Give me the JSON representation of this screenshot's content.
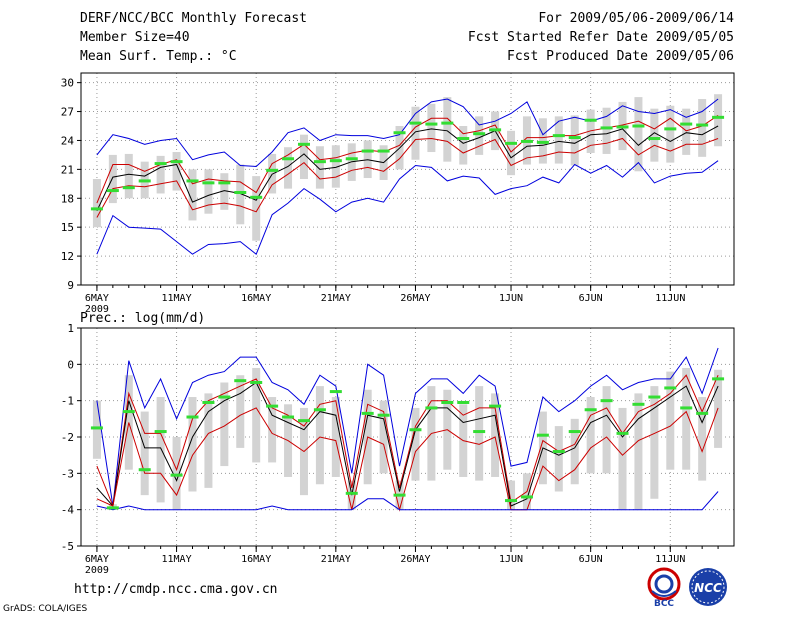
{
  "header": {
    "left": [
      "DERF/NCC/BCC Monthly Forecast",
      "Member Size=40",
      "Mean Surf. Temp.: °C"
    ],
    "right": [
      "For 2009/05/06-2009/06/14",
      "Fcst Started Refer Date 2009/05/05",
      "Fcst Produced Date 2009/05/06"
    ]
  },
  "footer": {
    "url": "http://cmdp.ncc.cma.gov.cn",
    "credit": "GrADS: COLA/IGES"
  },
  "logos": {
    "left_text": "BCC",
    "right_text": "NCC"
  },
  "colors": {
    "envelope": "#0000dd",
    "quartile": "#cc0000",
    "mean": "#000000",
    "box": "#d3d3d3",
    "marker": "#33dd33",
    "grid": "#9a9a9a"
  },
  "chart_data": [
    {
      "type": "line",
      "title": "Mean Surf. Temp.: °C",
      "ylim": [
        9,
        31
      ],
      "yticks": [
        9,
        12,
        15,
        18,
        21,
        24,
        27,
        30
      ],
      "xlim": [
        -1,
        40
      ],
      "xticks": [
        0,
        5,
        10,
        15,
        20,
        26,
        31,
        36
      ],
      "xticklabels": [
        "6MAY",
        "11MAY",
        "16MAY",
        "21MAY",
        "26MAY",
        "1JUN",
        "6JUN",
        "11JUN"
      ],
      "year_label": "2009",
      "x": [
        0,
        1,
        2,
        3,
        4,
        5,
        6,
        7,
        8,
        9,
        10,
        11,
        12,
        13,
        14,
        15,
        16,
        17,
        18,
        19,
        20,
        21,
        22,
        23,
        24,
        25,
        26,
        27,
        28,
        29,
        30,
        31,
        32,
        33,
        34,
        35,
        36,
        37,
        38,
        39
      ],
      "series": [
        {
          "name": "max",
          "values": [
            22.5,
            24.6,
            24.2,
            23.6,
            24.0,
            24.2,
            22.0,
            22.5,
            22.8,
            21.4,
            21.3,
            22.8,
            24.8,
            25.3,
            24.0,
            24.6,
            24.5,
            24.5,
            24.2,
            24.6,
            26.8,
            28.0,
            28.3,
            27.5,
            25.6,
            26.0,
            26.8,
            28.0,
            24.6,
            26.0,
            26.4,
            26.0,
            26.5,
            27.6,
            27.0,
            26.8,
            27.2,
            26.4,
            27.0,
            28.3
          ]
        },
        {
          "name": "q75",
          "values": [
            17.5,
            21.5,
            21.5,
            20.8,
            21.5,
            22.0,
            19.5,
            20.0,
            19.8,
            19.7,
            18.6,
            21.6,
            22.5,
            23.6,
            22.0,
            22.2,
            22.7,
            23.0,
            22.8,
            23.5,
            25.4,
            26.3,
            26.3,
            24.7,
            25.0,
            25.6,
            22.8,
            24.3,
            24.3,
            24.5,
            24.5,
            25.0,
            25.3,
            25.6,
            26.0,
            25.2,
            26.3,
            25.0,
            25.5,
            26.6
          ]
        },
        {
          "name": "mean",
          "values": [
            16.7,
            20.2,
            20.5,
            20.3,
            21.2,
            21.5,
            17.6,
            18.3,
            18.8,
            18.5,
            17.8,
            20.5,
            21.3,
            22.6,
            21.0,
            21.2,
            21.8,
            22.0,
            21.7,
            23.2,
            24.9,
            25.2,
            25.0,
            23.7,
            24.3,
            25.0,
            22.2,
            23.4,
            23.5,
            23.9,
            23.7,
            24.6,
            24.7,
            25.2,
            23.5,
            24.8,
            23.9,
            24.8,
            24.6,
            25.5
          ]
        },
        {
          "name": "q25",
          "values": [
            16.0,
            19.0,
            19.3,
            19.2,
            19.5,
            19.8,
            16.8,
            17.3,
            17.5,
            17.2,
            16.6,
            19.4,
            20.5,
            21.7,
            20.0,
            20.2,
            20.9,
            21.2,
            20.8,
            22.1,
            24.1,
            24.2,
            23.9,
            22.7,
            23.4,
            24.1,
            21.4,
            22.2,
            22.4,
            22.8,
            22.7,
            23.5,
            23.7,
            24.2,
            22.5,
            23.5,
            22.9,
            23.6,
            23.6,
            24.2
          ]
        },
        {
          "name": "min",
          "values": [
            12.2,
            16.2,
            15.0,
            14.9,
            14.8,
            13.5,
            12.2,
            13.2,
            13.3,
            13.5,
            12.2,
            16.3,
            17.5,
            19.0,
            17.9,
            16.6,
            17.6,
            18.0,
            17.6,
            20.0,
            21.4,
            21.2,
            19.8,
            20.3,
            20.1,
            18.4,
            19.0,
            19.3,
            20.2,
            19.6,
            21.5,
            20.6,
            21.4,
            20.2,
            21.7,
            19.6,
            20.3,
            20.6,
            20.7,
            21.9
          ]
        },
        {
          "name": "marker",
          "values": [
            16.9,
            18.8,
            19.1,
            19.8,
            21.6,
            21.8,
            19.8,
            19.6,
            19.6,
            18.6,
            18.1,
            20.9,
            22.1,
            23.6,
            21.8,
            21.9,
            22.1,
            22.9,
            22.9,
            24.8,
            25.8,
            25.7,
            25.8,
            24.2,
            24.7,
            25.1,
            23.7,
            23.9,
            23.8,
            24.5,
            24.3,
            26.1,
            25.3,
            25.4,
            25.5,
            24.2,
            25.2,
            25.7,
            25.6,
            26.4
          ]
        }
      ],
      "boxes": [
        {
          "low": [
            15.0,
            17.5,
            18.0,
            18.0,
            18.5,
            18.8,
            15.7,
            16.4,
            16.8,
            15.3,
            13.6,
            18.5,
            19.0,
            20.0,
            19.0,
            19.1,
            19.8,
            20.1,
            19.9,
            21.0,
            22.0,
            22.8,
            21.8,
            21.5,
            22.5,
            23.0,
            20.4,
            21.5,
            21.6,
            21.6,
            21.4,
            22.7,
            22.6,
            23.0,
            20.8,
            21.8,
            21.7,
            22.5,
            22.3,
            23.4
          ],
          "high": [
            20.0,
            22.5,
            22.6,
            21.8,
            22.4,
            22.8,
            21.0,
            21.0,
            20.6,
            21.5,
            20.3,
            22.6,
            23.3,
            24.6,
            23.4,
            23.5,
            23.7,
            24.0,
            23.5,
            25.5,
            27.5,
            27.8,
            28.5,
            25.5,
            26.5,
            27.0,
            25.0,
            26.5,
            26.3,
            26.5,
            26.6,
            27.2,
            27.4,
            28.0,
            28.5,
            27.3,
            27.6,
            27.3,
            28.3,
            28.8
          ]
        }
      ]
    },
    {
      "type": "line",
      "title": "Prec.: log(mm/d)",
      "ylim": [
        -5,
        1
      ],
      "yticks": [
        -5,
        -4,
        -3,
        -2,
        -1,
        0,
        1
      ],
      "xlim": [
        -1,
        40
      ],
      "xticks": [
        0,
        5,
        10,
        15,
        20,
        26,
        31,
        36
      ],
      "xticklabels": [
        "6MAY",
        "11MAY",
        "16MAY",
        "21MAY",
        "26MAY",
        "1JUN",
        "6JUN",
        "11JUN"
      ],
      "year_label": "2009",
      "x": [
        0,
        1,
        2,
        3,
        4,
        5,
        6,
        7,
        8,
        9,
        10,
        11,
        12,
        13,
        14,
        15,
        16,
        17,
        18,
        19,
        20,
        21,
        22,
        23,
        24,
        25,
        26,
        27,
        28,
        29,
        30,
        31,
        32,
        33,
        34,
        35,
        36,
        37,
        38,
        39
      ],
      "series": [
        {
          "name": "max",
          "values": [
            -1.0,
            -3.9,
            0.1,
            -1.2,
            -0.4,
            -1.5,
            -0.5,
            -0.3,
            -0.2,
            0.2,
            0.2,
            -0.5,
            -0.7,
            -1.1,
            -0.3,
            -0.6,
            -3.0,
            0.0,
            -0.3,
            -2.8,
            -0.8,
            -0.4,
            -0.4,
            -0.8,
            -0.3,
            -0.6,
            -2.8,
            -2.7,
            -0.9,
            -1.3,
            -1.0,
            -0.6,
            -0.3,
            -0.7,
            -0.5,
            -0.4,
            -0.4,
            0.2,
            -0.8,
            0.45
          ]
        },
        {
          "name": "q75",
          "values": [
            -2.8,
            -3.9,
            -0.8,
            -1.9,
            -1.9,
            -2.9,
            -1.5,
            -1.0,
            -0.8,
            -0.6,
            -0.4,
            -1.2,
            -1.4,
            -1.7,
            -1.1,
            -1.0,
            -3.4,
            -1.1,
            -1.3,
            -3.4,
            -1.7,
            -1.0,
            -1.0,
            -1.4,
            -1.2,
            -1.2,
            -3.8,
            -3.5,
            -2.1,
            -2.4,
            -2.2,
            -1.4,
            -1.2,
            -1.9,
            -1.3,
            -1.1,
            -0.8,
            -0.3,
            -1.3,
            -0.3
          ]
        },
        {
          "name": "mean",
          "values": [
            -3.4,
            -3.9,
            -1.0,
            -2.3,
            -2.3,
            -3.2,
            -2.0,
            -1.3,
            -1.0,
            -0.8,
            -0.5,
            -1.4,
            -1.6,
            -1.8,
            -1.3,
            -1.4,
            -3.6,
            -1.4,
            -1.5,
            -3.5,
            -1.8,
            -1.2,
            -1.2,
            -1.6,
            -1.5,
            -1.4,
            -3.9,
            -3.7,
            -2.3,
            -2.5,
            -2.3,
            -1.6,
            -1.4,
            -2.0,
            -1.5,
            -1.2,
            -0.9,
            -0.6,
            -1.6,
            -0.6
          ]
        },
        {
          "name": "q25",
          "values": [
            -3.7,
            -3.9,
            -1.6,
            -3.0,
            -3.0,
            -3.6,
            -2.5,
            -1.9,
            -1.7,
            -1.4,
            -1.2,
            -1.9,
            -2.1,
            -2.4,
            -2.0,
            -2.1,
            -4.0,
            -2.0,
            -2.2,
            -4.0,
            -2.4,
            -1.9,
            -1.8,
            -2.1,
            -2.2,
            -2.0,
            -4.0,
            -4.0,
            -2.8,
            -3.2,
            -2.9,
            -2.3,
            -2.0,
            -2.5,
            -2.1,
            -1.9,
            -1.7,
            -1.3,
            -2.4,
            -1.2
          ]
        },
        {
          "name": "min",
          "values": [
            -3.9,
            -4.0,
            -3.9,
            -4.0,
            -4.0,
            -4.0,
            -4.0,
            -4.0,
            -4.0,
            -4.0,
            -4.0,
            -3.9,
            -4.0,
            -4.0,
            -4.0,
            -4.0,
            -4.0,
            -3.7,
            -3.7,
            -4.0,
            -4.0,
            -4.0,
            -4.0,
            -4.0,
            -4.0,
            -4.0,
            -4.0,
            -4.0,
            -4.0,
            -4.0,
            -4.0,
            -4.0,
            -4.0,
            -4.0,
            -4.0,
            -4.0,
            -4.0,
            -4.0,
            -4.0,
            -3.5
          ]
        },
        {
          "name": "marker",
          "values": [
            -1.75,
            -3.95,
            -1.3,
            -2.9,
            -1.85,
            -3.05,
            -1.45,
            -1.05,
            -0.9,
            -0.45,
            -0.5,
            -1.15,
            -1.45,
            -1.55,
            -1.25,
            -0.75,
            -3.55,
            -1.35,
            -1.4,
            -3.6,
            -1.8,
            -1.2,
            -1.05,
            -1.05,
            -1.85,
            -1.15,
            -3.75,
            -3.65,
            -1.95,
            -2.4,
            -1.85,
            -1.25,
            -1.0,
            -1.9,
            -1.1,
            -0.9,
            -0.65,
            -1.2,
            -1.35,
            -0.4
          ]
        }
      ],
      "boxes": [
        {
          "low": [
            -2.6,
            -4.0,
            -2.9,
            -3.6,
            -3.8,
            -4.0,
            -3.5,
            -3.4,
            -2.8,
            -2.3,
            -2.7,
            -2.7,
            -3.1,
            -3.6,
            -3.3,
            -3.1,
            -4.0,
            -3.3,
            -3.0,
            -4.0,
            -3.2,
            -3.2,
            -2.9,
            -3.1,
            -3.2,
            -3.1,
            -4.0,
            -4.0,
            -3.3,
            -3.5,
            -3.3,
            -3.0,
            -3.0,
            -4.0,
            -4.0,
            -3.7,
            -2.9,
            -2.9,
            -3.2,
            -2.3
          ],
          "high": [
            -1.0,
            -3.85,
            -0.3,
            -1.3,
            -0.9,
            -2.0,
            -0.9,
            -0.8,
            -0.5,
            -0.3,
            -0.1,
            -0.9,
            -1.1,
            -1.2,
            -0.6,
            -0.9,
            -3.2,
            -0.7,
            -1.0,
            -3.2,
            -1.2,
            -0.6,
            -0.7,
            -1.1,
            -0.6,
            -0.8,
            -3.2,
            -3.0,
            -1.3,
            -1.7,
            -1.5,
            -0.9,
            -0.6,
            -1.2,
            -0.8,
            -0.6,
            -0.2,
            -0.1,
            -0.9,
            -0.15
          ]
        }
      ]
    }
  ]
}
